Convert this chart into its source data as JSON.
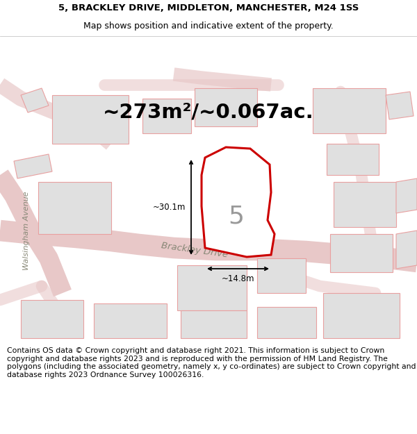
{
  "title_line1": "5, BRACKLEY DRIVE, MIDDLETON, MANCHESTER, M24 1SS",
  "title_line2": "Map shows position and indicative extent of the property.",
  "area_text": "~273m²/~0.067ac.",
  "property_number": "5",
  "dim_height": "~30.1m",
  "dim_width": "~14.8m",
  "street_label": "Brackley Drive",
  "side_label": "Walsingham Avenue",
  "footer_text": "Contains OS data © Crown copyright and database right 2021. This information is subject to Crown copyright and database rights 2023 and is reproduced with the permission of HM Land Registry. The polygons (including the associated geometry, namely x, y co-ordinates) are subject to Crown copyright and database rights 2023 Ordnance Survey 100026316.",
  "bg_color": "#f2f2f2",
  "map_bg": "#f2f2f2",
  "property_fill": "#ffffff",
  "property_edge": "#cc0000",
  "other_poly_fill": "#e0e0e0",
  "other_poly_edge": "#e8a0a0",
  "road_color": "#e8c8c8",
  "title_fontsize": 9.5,
  "area_fontsize": 21,
  "footer_fontsize": 7.8
}
